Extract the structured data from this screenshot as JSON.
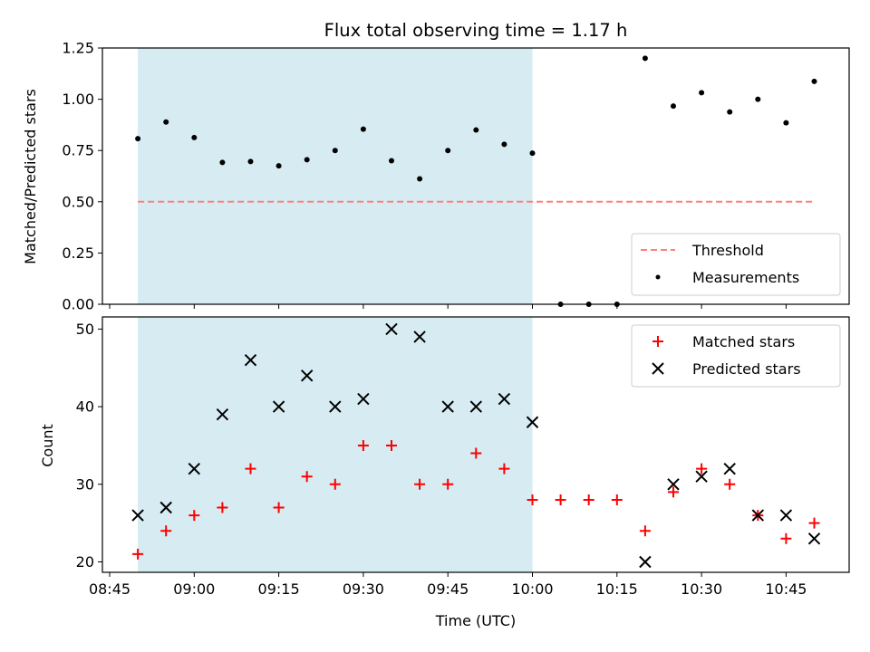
{
  "chart_data": [
    {
      "type": "scatter",
      "title": "Flux total observing time = 1.17 h",
      "xlabel": "",
      "ylabel": "Matched/Predicted stars",
      "ylim": [
        0.0,
        1.25
      ],
      "yticks": [
        "0.00",
        "0.25",
        "0.50",
        "0.75",
        "1.00",
        "1.25"
      ],
      "ytick_values": [
        0.0,
        0.25,
        0.5,
        0.75,
        1.0,
        1.25
      ],
      "xlim": [
        "08:45",
        "10:50"
      ],
      "shaded_interval": [
        "08:50",
        "10:00"
      ],
      "shade_color": "#add8e6",
      "legend_position": "lower right",
      "threshold": {
        "name": "Threshold",
        "value": 0.5,
        "x_start": "08:50",
        "x_end": "10:50",
        "color": "#ff7f7f"
      },
      "series": [
        {
          "name": "Measurements",
          "color": "#000000",
          "x": [
            "08:50",
            "08:55",
            "09:00",
            "09:05",
            "09:10",
            "09:15",
            "09:20",
            "09:25",
            "09:30",
            "09:35",
            "09:40",
            "09:45",
            "09:50",
            "09:55",
            "10:00",
            "10:05",
            "10:10",
            "10:15",
            "10:20",
            "10:25",
            "10:30",
            "10:35",
            "10:40",
            "10:45",
            "10:50"
          ],
          "y": [
            0.808,
            0.889,
            0.813,
            0.692,
            0.696,
            0.675,
            0.705,
            0.75,
            0.854,
            0.7,
            0.612,
            0.75,
            0.85,
            0.78,
            0.737,
            0.0,
            0.0,
            0.0,
            1.2,
            0.967,
            1.032,
            0.938,
            1.0,
            0.885,
            1.087
          ]
        }
      ]
    },
    {
      "type": "scatter",
      "title": "",
      "xlabel": "Time (UTC)",
      "ylabel": "Count",
      "ylim": [
        18.5,
        51.5
      ],
      "yticks": [
        "20",
        "30",
        "40",
        "50"
      ],
      "ytick_values": [
        20,
        30,
        40,
        50
      ],
      "xlim": [
        "08:45",
        "10:50"
      ],
      "xticks": [
        "08:45",
        "09:00",
        "09:15",
        "09:30",
        "09:45",
        "10:00",
        "10:15",
        "10:30",
        "10:45"
      ],
      "shaded_interval": [
        "08:50",
        "10:00"
      ],
      "shade_color": "#add8e6",
      "legend_position": "upper right",
      "series": [
        {
          "name": "Matched stars",
          "marker": "+",
          "color": "#ff0000",
          "x": [
            "08:50",
            "08:55",
            "09:00",
            "09:05",
            "09:10",
            "09:15",
            "09:20",
            "09:25",
            "09:30",
            "09:35",
            "09:40",
            "09:45",
            "09:50",
            "09:55",
            "10:00",
            "10:05",
            "10:10",
            "10:15",
            "10:20",
            "10:25",
            "10:30",
            "10:35",
            "10:40",
            "10:45",
            "10:50"
          ],
          "y": [
            21,
            24,
            26,
            27,
            32,
            27,
            31,
            30,
            35,
            35,
            30,
            30,
            34,
            32,
            28,
            28,
            28,
            28,
            24,
            29,
            32,
            30,
            26,
            23,
            25
          ]
        },
        {
          "name": "Predicted stars",
          "marker": "x",
          "color": "#000000",
          "x": [
            "08:50",
            "08:55",
            "09:00",
            "09:05",
            "09:10",
            "09:15",
            "09:20",
            "09:25",
            "09:30",
            "09:35",
            "09:40",
            "09:45",
            "09:50",
            "09:55",
            "10:00",
            "10:20",
            "10:25",
            "10:30",
            "10:35",
            "10:40",
            "10:45",
            "10:50"
          ],
          "y": [
            26,
            27,
            32,
            39,
            46,
            40,
            44,
            40,
            41,
            50,
            49,
            40,
            40,
            41,
            38,
            20,
            30,
            31,
            32,
            26,
            26,
            23
          ]
        }
      ]
    }
  ]
}
